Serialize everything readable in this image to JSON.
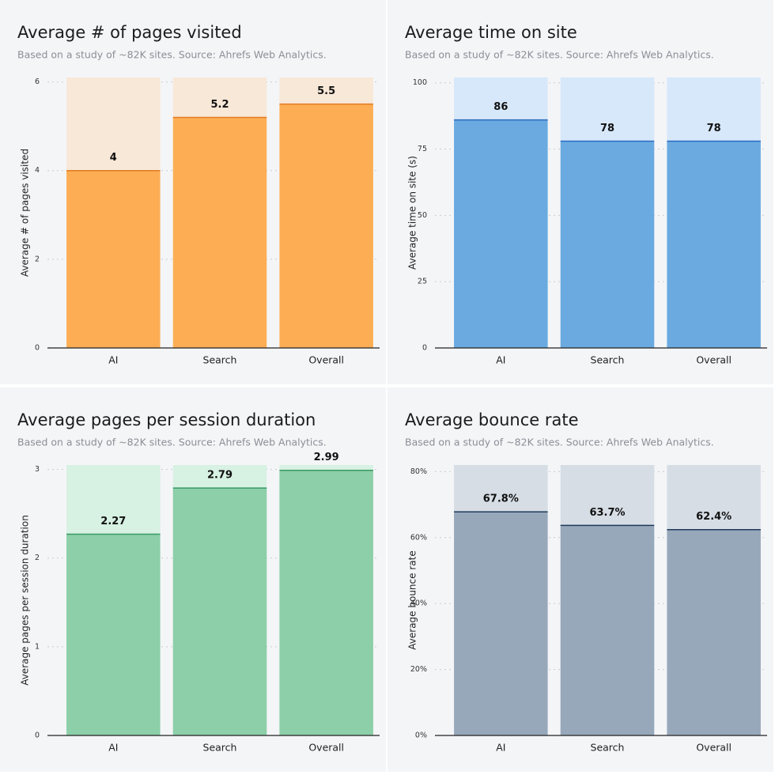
{
  "chart_data": [
    {
      "type": "bar",
      "title": "Average # of pages visited",
      "subtitle": "Based on a study of ~82K sites. Source: Ahrefs Web Analytics.",
      "y_label": "Average # of pages visited",
      "categories": [
        "AI",
        "Search",
        "Overall"
      ],
      "values": [
        4,
        5.2,
        5.5
      ],
      "color": "#fdae55",
      "band_color": "#f8e8d8",
      "line_color": "#e07b22",
      "ylim": [
        0,
        6.1
      ],
      "yticks": [
        0,
        2,
        4,
        6
      ],
      "grid": true
    },
    {
      "type": "bar",
      "title": "Average time on site",
      "subtitle": "Based on a study of ~82K sites. Source: Ahrefs Web Analytics.",
      "y_label": "Average time on site (s)",
      "categories": [
        "AI",
        "Search",
        "Overall"
      ],
      "values": [
        86,
        78,
        78
      ],
      "color": "#6aaae0",
      "band_color": "#d7e8fa",
      "line_color": "#2a6bbf",
      "ylim": [
        0,
        102
      ],
      "yticks": [
        0,
        25,
        50,
        75,
        100
      ],
      "grid": true
    },
    {
      "type": "bar",
      "title": "Average pages per session duration",
      "subtitle": "Based on a study of ~82K sites. Source: Ahrefs Web Analytics.",
      "y_label": "Average pages per session duration",
      "categories": [
        "AI",
        "Search",
        "Overall"
      ],
      "values": [
        2.27,
        2.79,
        2.99
      ],
      "color": "#8ccfa8",
      "band_color": "#d7f1e3",
      "line_color": "#3a9a63",
      "ylim": [
        0,
        3.05
      ],
      "yticks": [
        0,
        1,
        2,
        3
      ],
      "grid": true
    },
    {
      "type": "bar",
      "title": "Average bounce rate",
      "subtitle": "Based on a study of ~82K sites. Source: Ahrefs Web Analytics.",
      "y_label": "Average bounce rate",
      "categories": [
        "AI",
        "Search",
        "Overall"
      ],
      "values": [
        67.8,
        63.7,
        62.4
      ],
      "value_labels": [
        "67.8%",
        "63.7%",
        "62.4%"
      ],
      "color": "#98a8bb",
      "band_color": "#d6dde5",
      "line_color": "#1f3a5c",
      "ylim": [
        0,
        82
      ],
      "yticks": [
        {
          "value": 0,
          "label": "0%"
        },
        {
          "value": 20,
          "label": "20%"
        },
        {
          "value": 40,
          "label": "40%"
        },
        {
          "value": 60,
          "label": "60%"
        },
        {
          "value": 80,
          "label": "80%"
        }
      ],
      "grid": true
    }
  ]
}
